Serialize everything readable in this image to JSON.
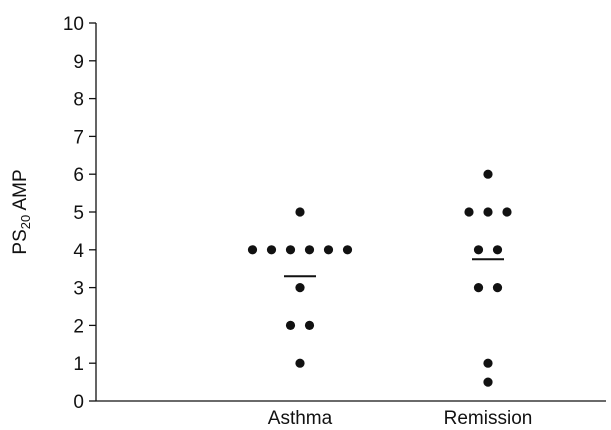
{
  "chart_data": {
    "type": "scatter",
    "title": "",
    "ylabel": {
      "prefix": "PS",
      "subscript": "20",
      "suffix": " AMP"
    },
    "xlabel": "",
    "ylim": [
      0,
      10
    ],
    "yticks": [
      "0",
      "1",
      "2",
      "3",
      "4",
      "5",
      "6",
      "7",
      "8",
      "9",
      "10"
    ],
    "categories": [
      "Asthma",
      "Remission"
    ],
    "grid": false,
    "legend": "none",
    "marker_color": "#111111",
    "series": [
      {
        "category": "Asthma",
        "values": [
          5,
          4,
          4,
          4,
          4,
          4,
          4,
          3,
          2,
          2,
          1
        ],
        "mean": 3.3
      },
      {
        "category": "Remission",
        "values": [
          6,
          5,
          5,
          5,
          4,
          4,
          3,
          3,
          1,
          0.5
        ],
        "mean": 3.75
      }
    ]
  }
}
